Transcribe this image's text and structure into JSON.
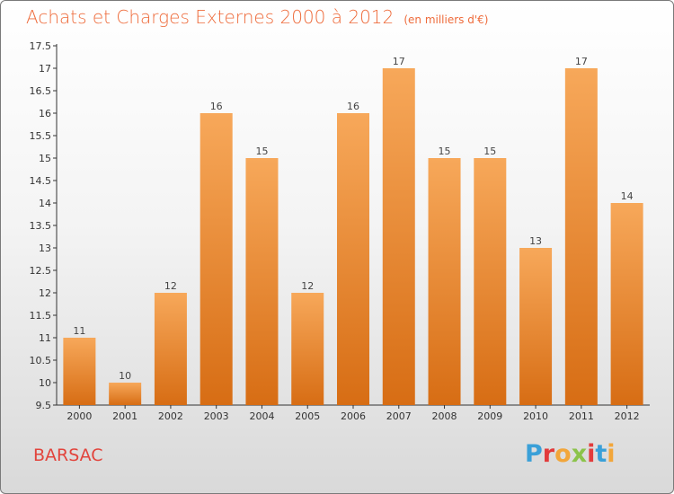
{
  "header": {
    "title": "Achats et Charges Externes 2000 à 2012",
    "unit": "(en milliers d'€)"
  },
  "footer": {
    "city": "BARSAC",
    "logo_text": "Proxiti",
    "logo_colors": [
      "#3aa0d8",
      "#e23b3b",
      "#f2a63a",
      "#8bc34a",
      "#e23b3b",
      "#3aa0d8",
      "#f2a63a"
    ]
  },
  "colors": {
    "bar_light": "#f7a85a",
    "bar_dark": "#d76d14",
    "title": "#ee6b3b",
    "city": "#e2443c"
  },
  "chart_data": {
    "type": "bar",
    "title": "Achats et Charges Externes 2000 à 2012",
    "categories": [
      "2000",
      "2001",
      "2002",
      "2003",
      "2004",
      "2005",
      "2006",
      "2007",
      "2008",
      "2009",
      "2010",
      "2011",
      "2012"
    ],
    "values": [
      11,
      10,
      12,
      16,
      15,
      12,
      16,
      17,
      15,
      15,
      13,
      17,
      14
    ],
    "data_labels": [
      "11",
      "10",
      "12",
      "16",
      "15",
      "12",
      "16",
      "17",
      "15",
      "15",
      "13",
      "17",
      "14"
    ],
    "yticks": [
      "9.5",
      "10",
      "10.5",
      "11",
      "11.5",
      "12",
      "12.5",
      "13",
      "13.5",
      "14",
      "14.5",
      "15",
      "15.5",
      "16",
      "16.5",
      "17",
      "17.5"
    ],
    "ylim": [
      9.5,
      17.5
    ],
    "grid": false,
    "legend": "none"
  }
}
